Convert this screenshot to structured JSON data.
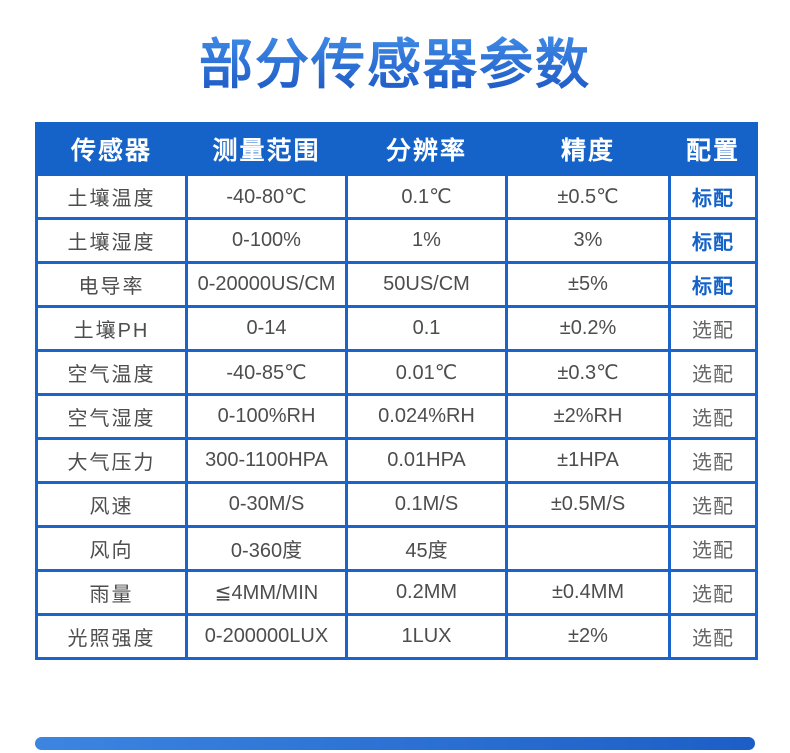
{
  "page": {
    "title": "部分传感器参数"
  },
  "colors": {
    "accent_blue": "#1563c8",
    "standard_badge_blue": "#1563c8",
    "optional_text_gray": "#666666",
    "body_text": "#4d4d4d"
  },
  "table": {
    "columns": [
      {
        "key": "sensor",
        "label": "传感器"
      },
      {
        "key": "range",
        "label": "测量范围"
      },
      {
        "key": "resolution",
        "label": "分辨率"
      },
      {
        "key": "accuracy",
        "label": "精度"
      },
      {
        "key": "config",
        "label": "配置"
      }
    ],
    "rows": [
      {
        "sensor": "土壤温度",
        "range": "-40-80℃",
        "resolution": "0.1℃",
        "accuracy": "±0.5℃",
        "config": "标配",
        "config_type": "standard"
      },
      {
        "sensor": "土壤湿度",
        "range": "0-100%",
        "resolution": "1%",
        "accuracy": "3%",
        "config": "标配",
        "config_type": "standard"
      },
      {
        "sensor": "电导率",
        "range": "0-20000US/CM",
        "resolution": "50US/CM",
        "accuracy": "±5%",
        "config": "标配",
        "config_type": "standard"
      },
      {
        "sensor": "土壤PH",
        "range": "0-14",
        "resolution": "0.1",
        "accuracy": "±0.2%",
        "config": "选配",
        "config_type": "optional"
      },
      {
        "sensor": "空气温度",
        "range": "-40-85℃",
        "resolution": "0.01℃",
        "accuracy": "±0.3℃",
        "config": "选配",
        "config_type": "optional"
      },
      {
        "sensor": "空气湿度",
        "range": "0-100%RH",
        "resolution": "0.024%RH",
        "accuracy": "±2%RH",
        "config": "选配",
        "config_type": "optional"
      },
      {
        "sensor": "大气压力",
        "range": "300-1100HPA",
        "resolution": "0.01HPA",
        "accuracy": "±1HPA",
        "config": "选配",
        "config_type": "optional"
      },
      {
        "sensor": "风速",
        "range": "0-30M/S",
        "resolution": "0.1M/S",
        "accuracy": "±0.5M/S",
        "config": "选配",
        "config_type": "optional"
      },
      {
        "sensor": "风向",
        "range": "0-360度",
        "resolution": "45度",
        "accuracy": "",
        "config": "选配",
        "config_type": "optional"
      },
      {
        "sensor": "雨量",
        "range": "≦4MM/MIN",
        "resolution": "0.2MM",
        "accuracy": "±0.4MM",
        "config": "选配",
        "config_type": "optional"
      },
      {
        "sensor": "光照强度",
        "range": "0-200000LUX",
        "resolution": "1LUX",
        "accuracy": "±2%",
        "config": "选配",
        "config_type": "optional"
      }
    ]
  }
}
